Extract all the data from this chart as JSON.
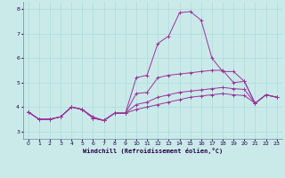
{
  "title": "",
  "xlabel": "Windchill (Refroidissement éolien,°C)",
  "ylabel": "",
  "background_color": "#caeaea",
  "grid_color": "#aadddd",
  "line_color": "#993399",
  "xlim": [
    -0.5,
    23.5
  ],
  "ylim": [
    2.7,
    8.3
  ],
  "xticks": [
    0,
    1,
    2,
    3,
    4,
    5,
    6,
    7,
    8,
    9,
    10,
    11,
    12,
    13,
    14,
    15,
    16,
    17,
    18,
    19,
    20,
    21,
    22,
    23
  ],
  "yticks": [
    3,
    4,
    5,
    6,
    7,
    8
  ],
  "series": [
    [
      3.8,
      3.5,
      3.5,
      3.6,
      4.0,
      3.9,
      3.6,
      3.45,
      3.75,
      3.75,
      5.2,
      5.3,
      6.6,
      6.9,
      7.85,
      7.9,
      7.55,
      6.0,
      5.45,
      5.45,
      5.05,
      4.15,
      4.5,
      4.4
    ],
    [
      3.8,
      3.5,
      3.5,
      3.6,
      4.0,
      3.9,
      3.55,
      3.45,
      3.75,
      3.75,
      4.55,
      4.6,
      5.2,
      5.3,
      5.35,
      5.4,
      5.45,
      5.5,
      5.5,
      5.0,
      5.05,
      4.15,
      4.5,
      4.4
    ],
    [
      3.8,
      3.5,
      3.5,
      3.6,
      4.0,
      3.9,
      3.55,
      3.45,
      3.75,
      3.75,
      4.1,
      4.2,
      4.4,
      4.5,
      4.6,
      4.65,
      4.7,
      4.75,
      4.8,
      4.75,
      4.72,
      4.15,
      4.5,
      4.4
    ],
    [
      3.8,
      3.5,
      3.5,
      3.6,
      4.0,
      3.9,
      3.55,
      3.45,
      3.75,
      3.75,
      3.9,
      4.0,
      4.1,
      4.2,
      4.3,
      4.4,
      4.45,
      4.5,
      4.55,
      4.5,
      4.47,
      4.15,
      4.5,
      4.4
    ]
  ]
}
